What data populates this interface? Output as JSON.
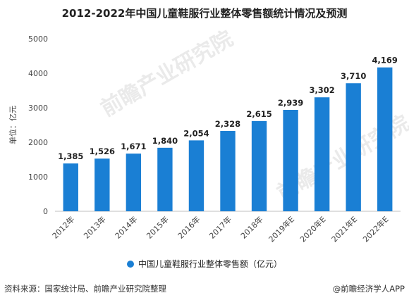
{
  "chart_data": {
    "type": "bar",
    "title": "2012-2022年中国儿童鞋服行业整体零售额统计情况及预测",
    "categories": [
      "2012年",
      "2013年",
      "2014年",
      "2015年",
      "2016年",
      "2017年",
      "2018年",
      "2019年E",
      "2020年E",
      "2021年E",
      "2022年E"
    ],
    "series": [
      {
        "name": "中国儿童鞋服行业整体零售额（亿元）",
        "values": [
          1385,
          1526,
          1671,
          1840,
          2054,
          2328,
          2615,
          2939,
          3302,
          3710,
          4169
        ]
      }
    ],
    "data_labels": [
      "1,385",
      "1,526",
      "1,671",
      "1,840",
      "2,054",
      "2,328",
      "2,615",
      "2,939",
      "3,302",
      "3,710",
      "4,169"
    ],
    "ylabel": "单位：亿元",
    "ylim": [
      0,
      5000
    ],
    "yticks": [
      0,
      1000,
      2000,
      3000,
      4000,
      5000
    ],
    "grid": false,
    "legend_position": "bottom",
    "bar_color": "#1a7fd4"
  },
  "footer": {
    "source": "资料来源：国家统计局、前瞻产业研究院整理",
    "credit": "@前瞻经济学人APP"
  }
}
